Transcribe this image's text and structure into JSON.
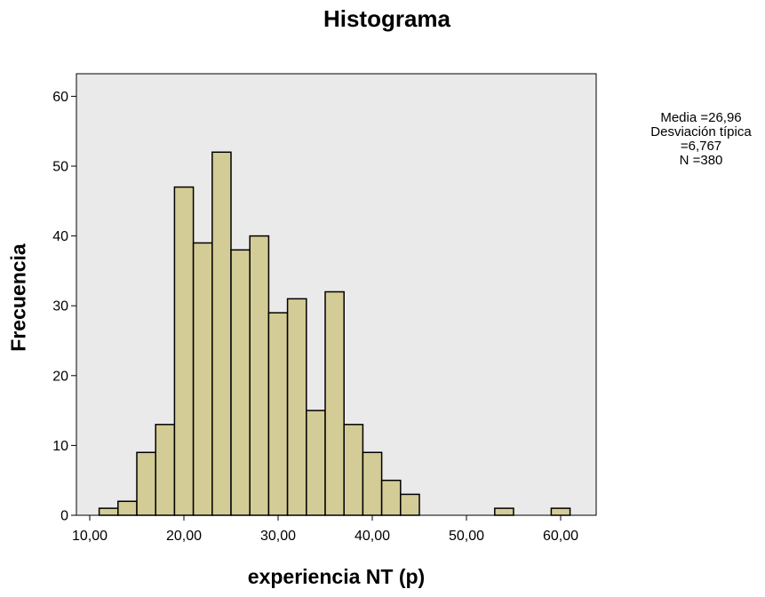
{
  "chart_data": {
    "type": "bar",
    "title": "Histograma",
    "xlabel": "experiencia NT (p)",
    "ylabel": "Frecuencia",
    "bin_width": 2.0,
    "bins": [
      {
        "x_start": 11,
        "value": 1
      },
      {
        "x_start": 13,
        "value": 2
      },
      {
        "x_start": 15,
        "value": 9
      },
      {
        "x_start": 17,
        "value": 13
      },
      {
        "x_start": 19,
        "value": 47
      },
      {
        "x_start": 21,
        "value": 39
      },
      {
        "x_start": 23,
        "value": 52
      },
      {
        "x_start": 25,
        "value": 38
      },
      {
        "x_start": 27,
        "value": 40
      },
      {
        "x_start": 29,
        "value": 29
      },
      {
        "x_start": 31,
        "value": 31
      },
      {
        "x_start": 33,
        "value": 15
      },
      {
        "x_start": 35,
        "value": 32
      },
      {
        "x_start": 37,
        "value": 13
      },
      {
        "x_start": 39,
        "value": 9
      },
      {
        "x_start": 41,
        "value": 5
      },
      {
        "x_start": 43,
        "value": 3
      },
      {
        "x_start": 53,
        "value": 1
      },
      {
        "x_start": 59,
        "value": 1
      }
    ],
    "xlim": [
      6.5,
      63.5
    ],
    "ylim": [
      0,
      63
    ],
    "x_ticks": [
      {
        "value": 10,
        "label": "10,00"
      },
      {
        "value": 20,
        "label": "20,00"
      },
      {
        "value": 30,
        "label": "30,00"
      },
      {
        "value": 40,
        "label": "40,00"
      },
      {
        "value": 50,
        "label": "50,00"
      },
      {
        "value": 60,
        "label": "60,00"
      }
    ],
    "y_ticks": [
      {
        "value": 0,
        "label": "0"
      },
      {
        "value": 10,
        "label": "10"
      },
      {
        "value": 20,
        "label": "20"
      },
      {
        "value": 30,
        "label": "30"
      },
      {
        "value": 40,
        "label": "40"
      },
      {
        "value": 50,
        "label": "50"
      },
      {
        "value": 60,
        "label": "60"
      }
    ],
    "grid": false,
    "legend": "none",
    "stats_box": {
      "line1": "Media =26,96",
      "line2": "Desviación típica",
      "line3": "=6,767",
      "line4": "N =380"
    },
    "colors": {
      "bar_fill": "#d4cc96",
      "bar_stroke": "#000000",
      "plot_background": "#eaeaea"
    }
  }
}
